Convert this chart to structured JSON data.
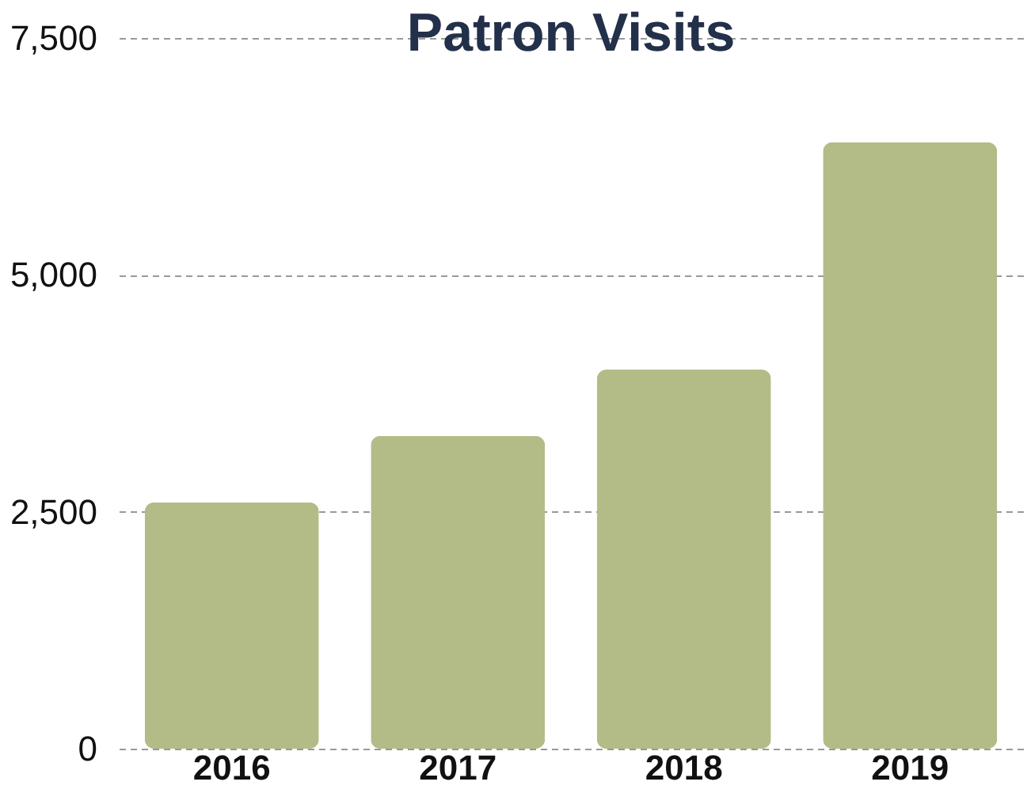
{
  "chart_data": {
    "type": "bar",
    "title": "Patron Visits",
    "categories": [
      "2016",
      "2017",
      "2018",
      "2019"
    ],
    "values": [
      2600,
      3300,
      4000,
      6400
    ],
    "color": "#b3bc86",
    "ylim": [
      0,
      7500
    ],
    "yticks": [
      0,
      {
        "value": 2500,
        "label": "2,500"
      },
      {
        "value": 5000,
        "label": "5,000"
      },
      {
        "value": 7500,
        "label": "7,500"
      }
    ],
    "grid": "y"
  }
}
